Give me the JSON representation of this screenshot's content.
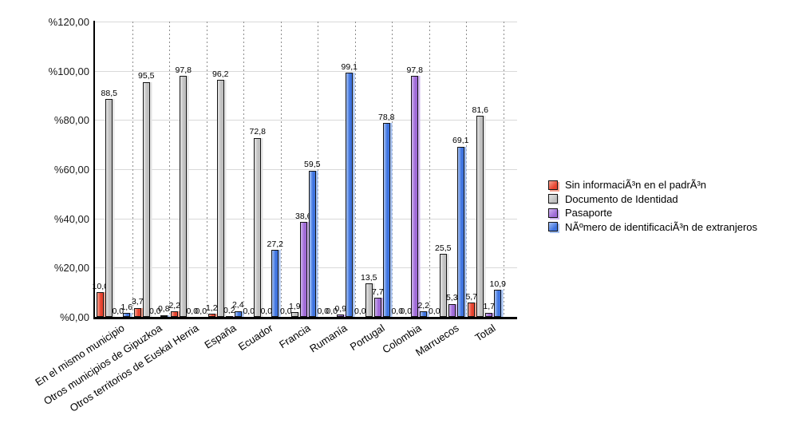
{
  "chart_data": {
    "type": "bar",
    "title": "",
    "ylim": [
      0,
      120
    ],
    "grid": true,
    "legend_position": "right",
    "y_ticks": [
      {
        "label": "%0,00",
        "value": 0
      },
      {
        "label": "%20,00",
        "value": 20
      },
      {
        "label": "%40,00",
        "value": 40
      },
      {
        "label": "%60,00",
        "value": 60
      },
      {
        "label": "%80,00",
        "value": 80
      },
      {
        "label": "%100,00",
        "value": 100
      },
      {
        "label": "%120,00",
        "value": 120
      }
    ],
    "categories": [
      "En el mismo municipio",
      "Otros municipios de Gipuzkoa",
      "Otros territorios de Euskal Herria",
      "España",
      "Ecuador",
      "Francia",
      "Rumanía",
      "Portugal",
      "Colombia",
      "Marruecos",
      "Total"
    ],
    "series": [
      {
        "name": "Sin informaciÃ³n en el padrÃ³n",
        "color": "#e8432f",
        "color_light": "#f6a492",
        "values": [
          10.0,
          3.7,
          2.2,
          1.2,
          0.0,
          0.0,
          0.0,
          0.0,
          0.0,
          0.0,
          5.7
        ]
      },
      {
        "name": "Documento de Identidad",
        "color": "#c0c0c0",
        "color_light": "#e4e4e4",
        "values": [
          88.5,
          95.5,
          97.8,
          96.2,
          72.8,
          1.9,
          0.0,
          13.5,
          0.0,
          25.5,
          81.6
        ]
      },
      {
        "name": "Pasaporte",
        "color": "#9f6ad7",
        "color_light": "#cfb4ef",
        "values": [
          0.0,
          0.0,
          0.0,
          0.2,
          0.0,
          38.6,
          0.9,
          7.7,
          97.8,
          5.3,
          1.7
        ]
      },
      {
        "name": "NÃºmero de identificaciÃ³n de extranjeros",
        "color": "#3f74e0",
        "color_light": "#a6c2f3",
        "values": [
          1.6,
          0.8,
          0.0,
          2.4,
          27.2,
          59.5,
          99.1,
          78.8,
          2.2,
          69.1,
          10.9
        ]
      }
    ]
  }
}
